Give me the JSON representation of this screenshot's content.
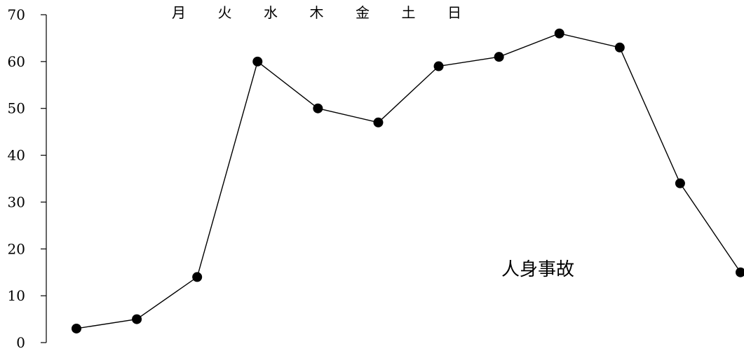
{
  "chart_data": {
    "type": "line",
    "title": "",
    "xlabel": "",
    "ylabel": "",
    "ylim": [
      0,
      70
    ],
    "y_ticks": [
      "0",
      "10",
      "20",
      "30",
      "40",
      "50",
      "60",
      "70"
    ],
    "top_labels": [
      "月",
      "火",
      "水",
      "木",
      "金",
      "土",
      "日"
    ],
    "grid": false,
    "series": [
      {
        "name": "人身事故",
        "color": "#000000",
        "marker": "filled-circle",
        "values": [
          3,
          5,
          14,
          60,
          50,
          47,
          59,
          61,
          66,
          63,
          34,
          15
        ]
      }
    ]
  }
}
